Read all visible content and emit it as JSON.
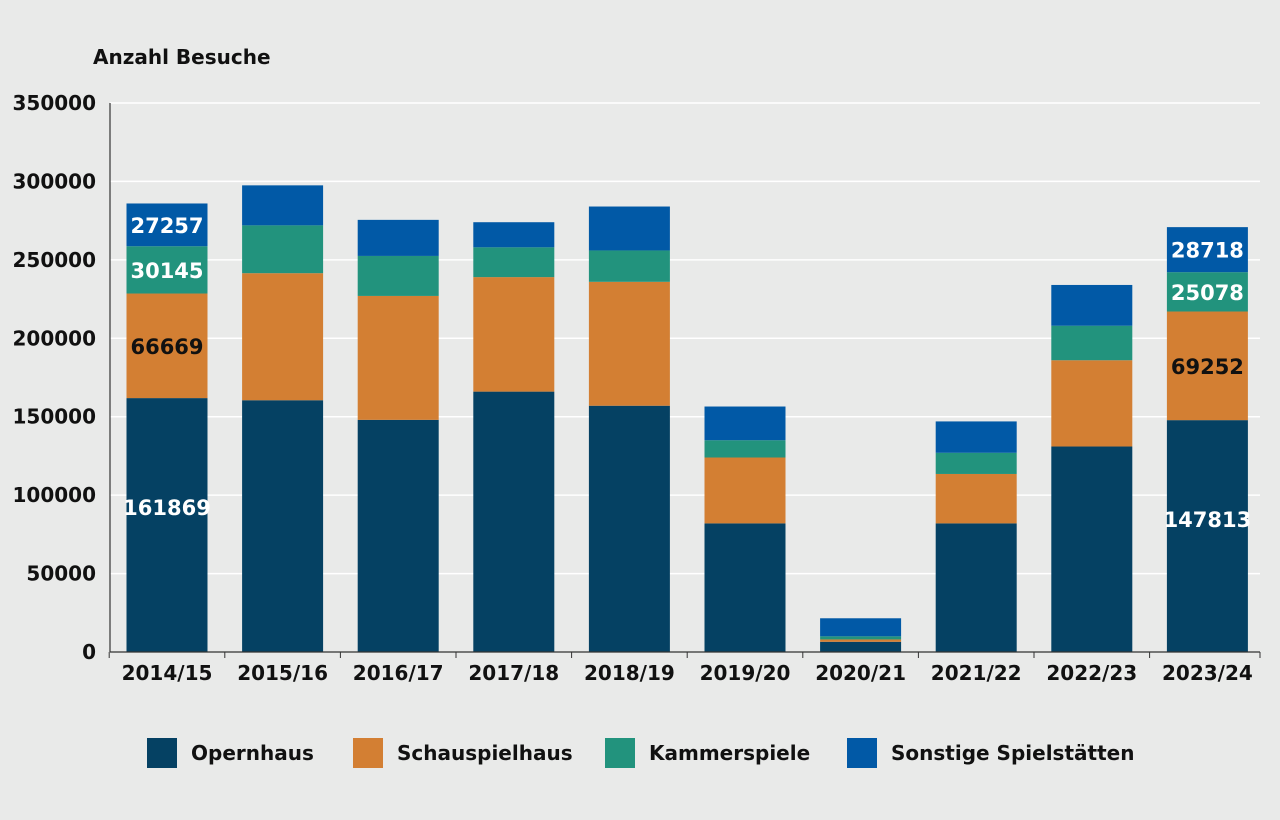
{
  "chart_data": {
    "type": "bar",
    "stacked": true,
    "ylabel": "Anzahl Besuche",
    "xlabel": "",
    "ylim": [
      0,
      350000
    ],
    "yticks": [
      0,
      50000,
      100000,
      150000,
      200000,
      250000,
      300000,
      350000
    ],
    "ytick_labels": [
      "0",
      "50000",
      "100000",
      "150000",
      "200000",
      "250000",
      "300000",
      "350000"
    ],
    "grid": true,
    "legend_position": "bottom",
    "categories": [
      "2014/15",
      "2015/16",
      "2016/17",
      "2017/18",
      "2018/19",
      "2019/20",
      "2020/21",
      "2021/22",
      "2022/23",
      "2023/24"
    ],
    "series": [
      {
        "name": "Opernhaus",
        "color": "#054163",
        "values": [
          161869,
          160500,
          148000,
          166000,
          157000,
          82000,
          6500,
          82000,
          131000,
          147813
        ],
        "labels": [
          "161869",
          "",
          "",
          "",
          "",
          "",
          "",
          "",
          "",
          "147813"
        ],
        "label_color": "#ffffff"
      },
      {
        "name": "Schauspielhaus",
        "color": "#d37f33",
        "values": [
          66669,
          81000,
          79000,
          73000,
          79000,
          42000,
          1500,
          31500,
          55000,
          69252
        ],
        "labels": [
          "66669",
          "",
          "",
          "",
          "",
          "",
          "",
          "",
          "",
          "69252"
        ],
        "label_color": "#111111"
      },
      {
        "name": "Kammerspiele",
        "color": "#22937d",
        "values": [
          30145,
          30500,
          25500,
          19000,
          20000,
          11000,
          2000,
          13500,
          22000,
          25078
        ],
        "labels": [
          "30145",
          "",
          "",
          "",
          "",
          "",
          "",
          "",
          "",
          "25078"
        ],
        "label_color": "#ffffff"
      },
      {
        "name": "Sonstige Spielstätten",
        "color": "#0159a6",
        "values": [
          27257,
          25500,
          23000,
          16000,
          28000,
          21500,
          11500,
          20000,
          26000,
          28718
        ],
        "labels": [
          "27257",
          "",
          "",
          "",
          "",
          "",
          "",
          "",
          "",
          "28718"
        ],
        "label_color": "#ffffff"
      }
    ]
  }
}
